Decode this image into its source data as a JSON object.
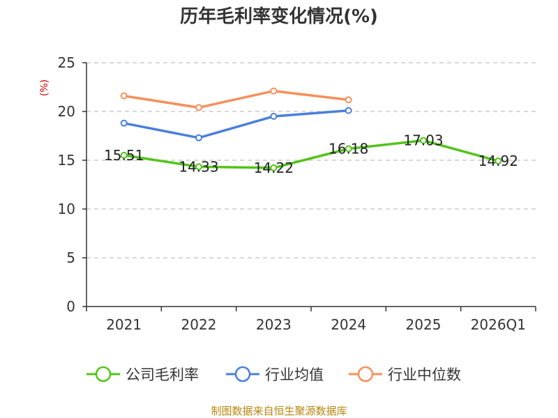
{
  "chart_data": {
    "type": "line",
    "title": "历年毛利率变化情况(%)",
    "ylabel": "(%)",
    "categories": [
      "2021",
      "2022",
      "2023",
      "2024",
      "2025",
      "2026Q1"
    ],
    "ylim": [
      0,
      25
    ],
    "yticks": [
      0,
      5,
      10,
      15,
      20,
      25
    ],
    "grid": true,
    "legend_position": "bottom",
    "series": [
      {
        "name": "公司毛利率",
        "color": "#52c41a",
        "values": [
          15.51,
          14.33,
          14.22,
          16.18,
          17.03,
          14.92
        ],
        "labels": [
          "15.51",
          "14.33",
          "14.22",
          "16.18",
          "17.03",
          "14.92"
        ]
      },
      {
        "name": "行业均值",
        "color": "#4a7fdc",
        "values": [
          18.8,
          17.3,
          19.5,
          20.1,
          null,
          null
        ]
      },
      {
        "name": "行业中位数",
        "color": "#f78f5a",
        "values": [
          21.6,
          20.4,
          22.1,
          21.2,
          null,
          null
        ]
      }
    ]
  },
  "source": "制图数据来自恒生聚源数据库"
}
